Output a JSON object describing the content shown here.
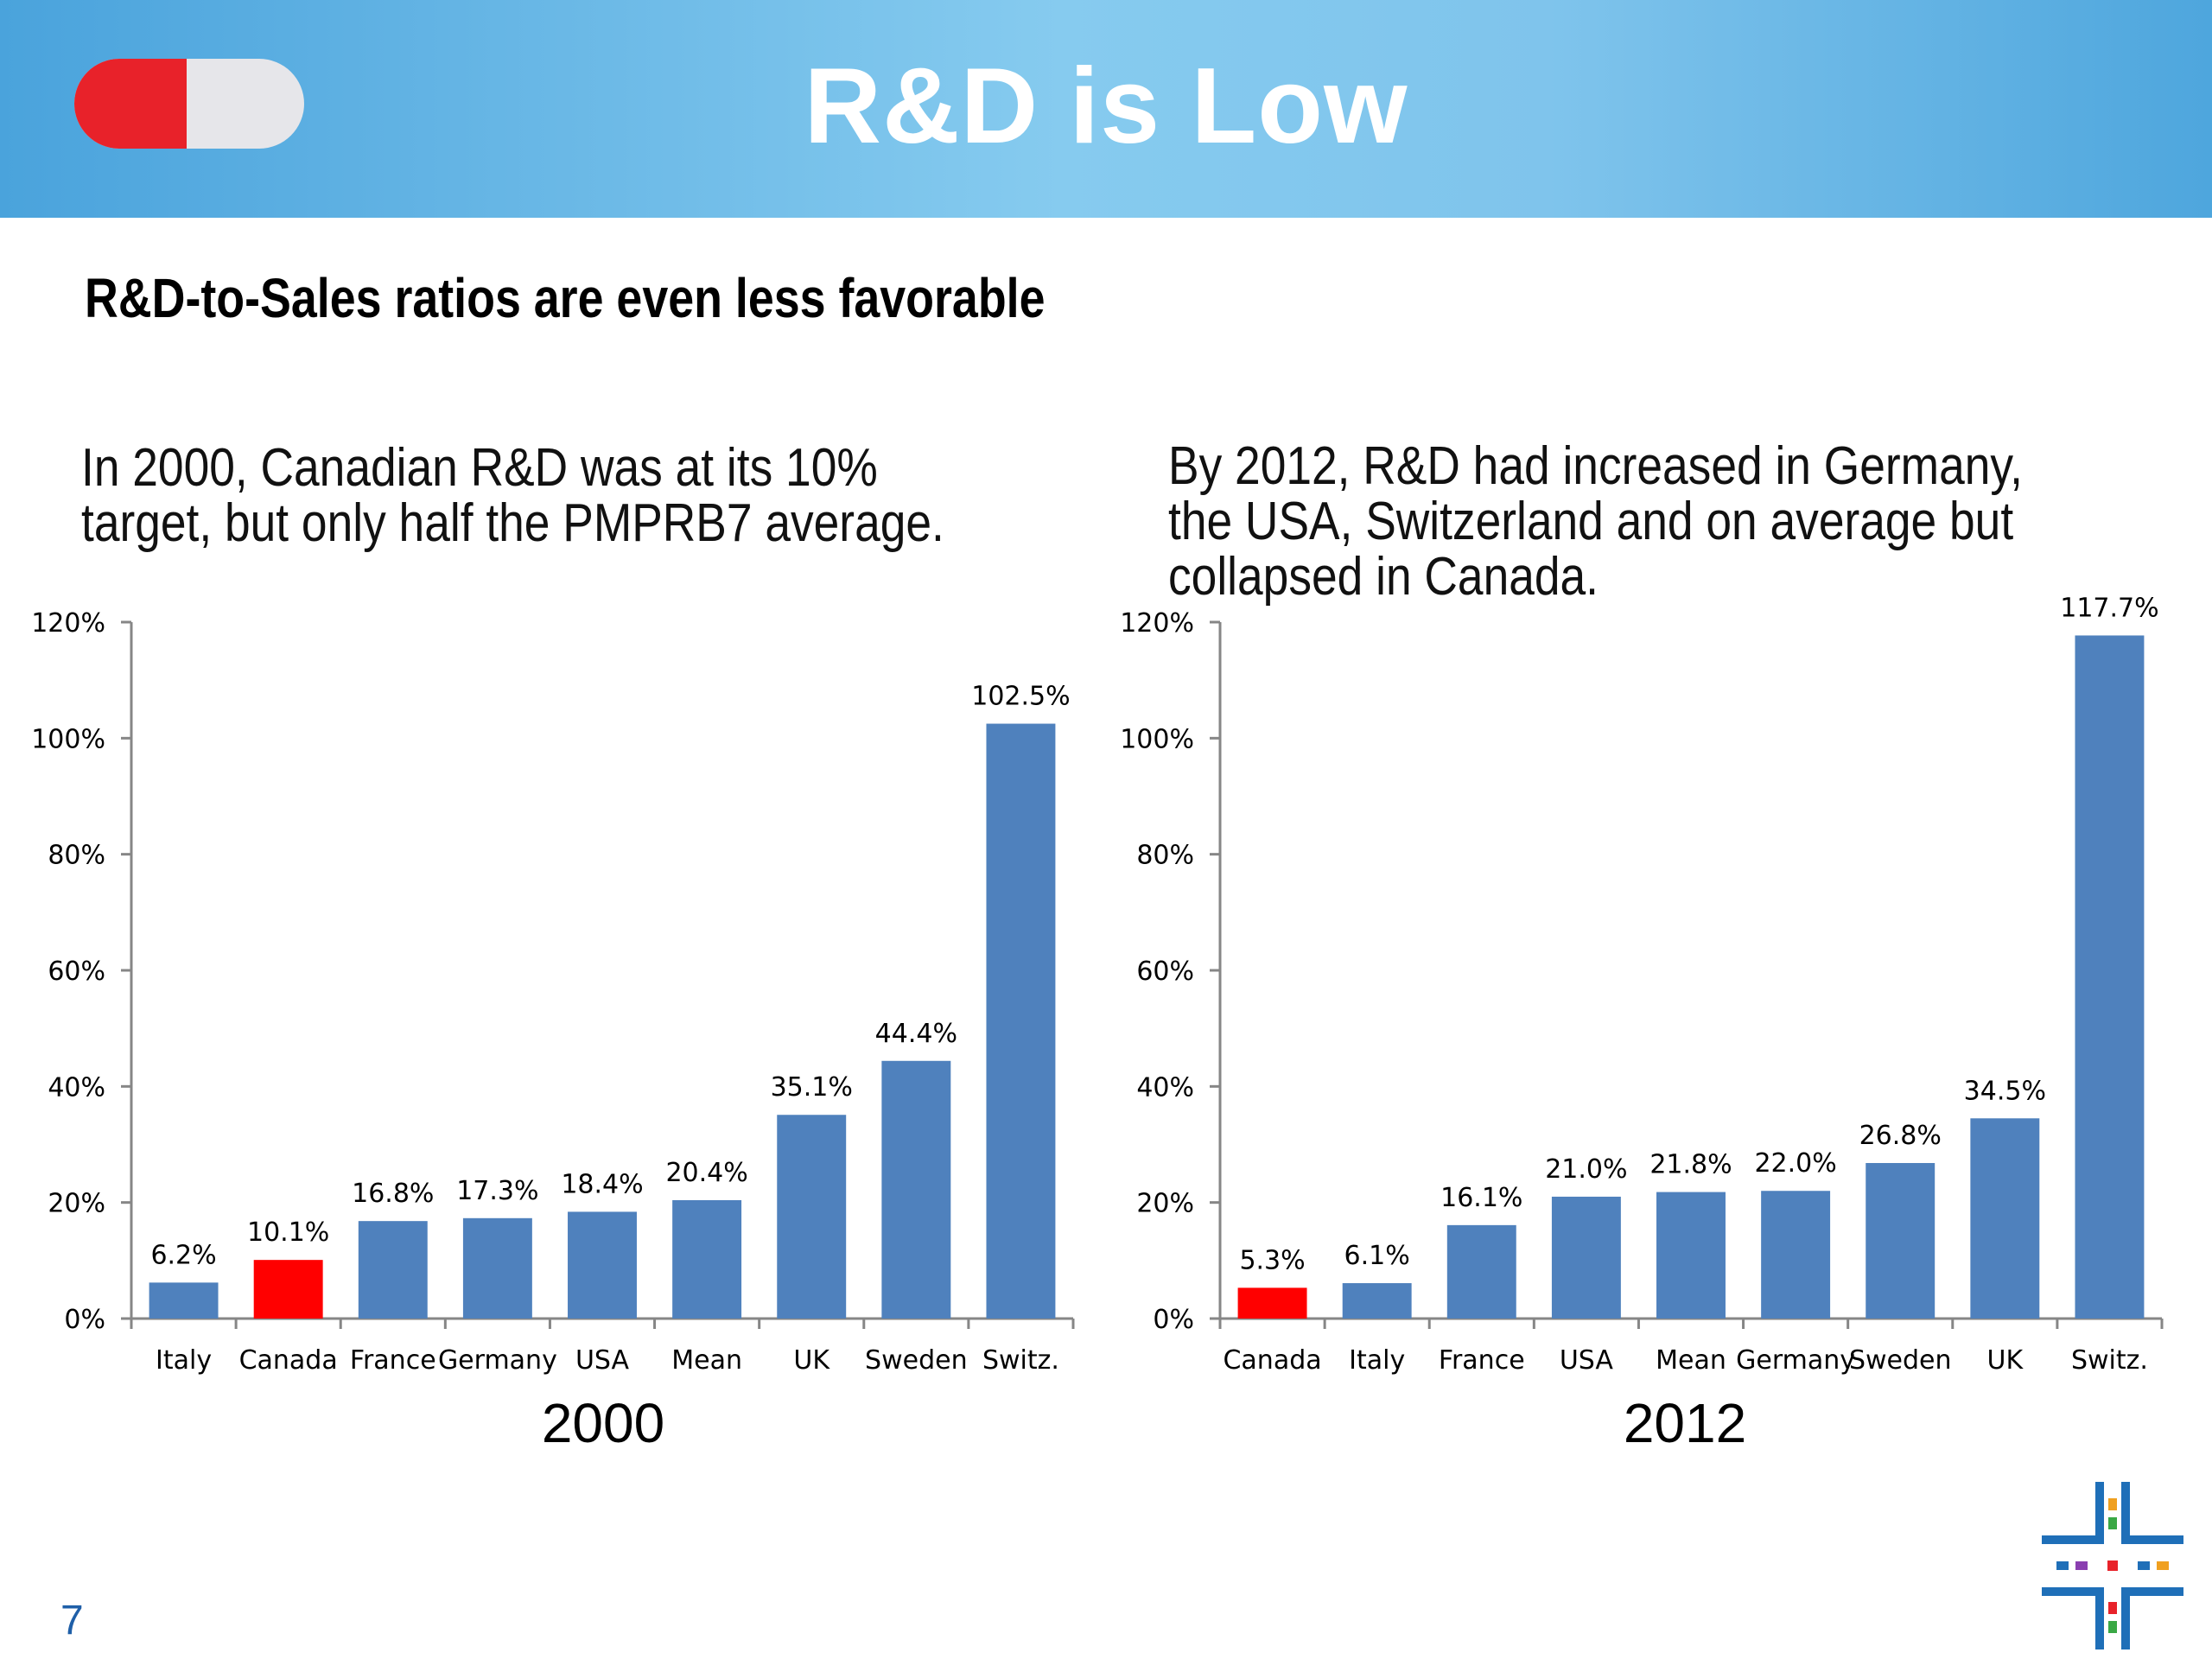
{
  "header": {
    "title": "R&D is Low",
    "pill_colors": [
      "#e8222a",
      "#e6e6ea"
    ]
  },
  "subtitle": "R&D-to-Sales ratios are even less favorable",
  "left_text": "In 2000, Canadian R&D was at its 10%\ntarget, but only half the PMPRB7 average.",
  "right_text": "By 2012, R&D had increased in Germany,\nthe USA, Switzerland and on average but\ncollapsed in Canada.",
  "page_number": "7",
  "logo": {
    "icon": "cross-grid-logo-icon"
  },
  "chart_data": [
    {
      "type": "bar",
      "title": "2000",
      "categories": [
        "Italy",
        "Canada",
        "France",
        "Germany",
        "USA",
        "Mean",
        "UK",
        "Sweden",
        "Switz."
      ],
      "values": [
        6.2,
        10.1,
        16.8,
        17.3,
        18.4,
        20.4,
        35.1,
        44.4,
        102.5
      ],
      "data_labels": [
        "6.2%",
        "10.1%",
        "16.8%",
        "17.3%",
        "18.4%",
        "20.4%",
        "35.1%",
        "44.4%",
        "102.5%"
      ],
      "highlight": "Canada",
      "bar_color": "#4f81bd",
      "highlight_color": "#ff0000",
      "ylim": [
        0,
        120
      ],
      "yticks": [
        "0%",
        "20%",
        "40%",
        "60%",
        "80%",
        "100%",
        "120%"
      ],
      "grid": false
    },
    {
      "type": "bar",
      "title": "2012",
      "categories": [
        "Canada",
        "Italy",
        "France",
        "USA",
        "Mean",
        "Germany",
        "Sweden",
        "UK",
        "Switz."
      ],
      "values": [
        5.3,
        6.1,
        16.1,
        21.0,
        21.8,
        22.0,
        26.8,
        34.5,
        117.7
      ],
      "data_labels": [
        "5.3%",
        "6.1%",
        "16.1%",
        "21.0%",
        "21.8%",
        "22.0%",
        "26.8%",
        "34.5%",
        "117.7%"
      ],
      "highlight": "Canada",
      "bar_color": "#4f81bd",
      "highlight_color": "#ff0000",
      "ylim": [
        0,
        120
      ],
      "yticks": [
        "0%",
        "20%",
        "40%",
        "60%",
        "80%",
        "100%",
        "120%"
      ],
      "grid": false
    }
  ]
}
